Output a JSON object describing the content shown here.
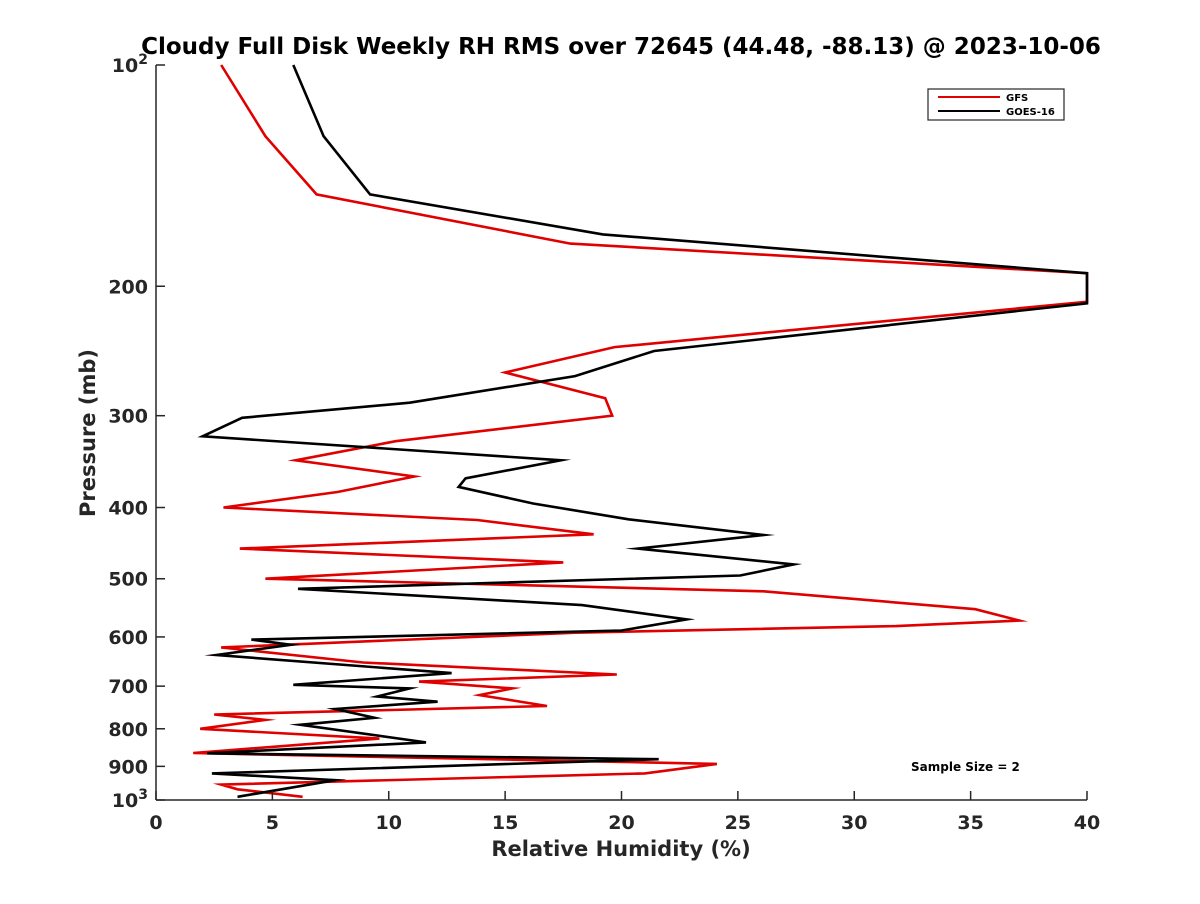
{
  "chart_data": {
    "type": "line",
    "title": "Cloudy Full Disk Weekly RH RMS over 72645 (44.48, -88.13) @ 2023-10-06",
    "xlabel": "Relative Humidity (%)",
    "ylabel": "Pressure (mb)",
    "xlim": [
      0,
      40
    ],
    "ylim": [
      100,
      1000
    ],
    "yscale": "log",
    "y_reversed": true,
    "grid": false,
    "legend_position": "top-right",
    "x_ticks": [
      "0",
      "5",
      "10",
      "15",
      "20",
      "25",
      "30",
      "35",
      "40"
    ],
    "y_ticks": [
      {
        "value": 100,
        "label": "10",
        "exp": "2"
      },
      {
        "value": 200,
        "label": "200"
      },
      {
        "value": 300,
        "label": "300"
      },
      {
        "value": 400,
        "label": "400"
      },
      {
        "value": 500,
        "label": "500"
      },
      {
        "value": 600,
        "label": "600"
      },
      {
        "value": 700,
        "label": "700"
      },
      {
        "value": 800,
        "label": "800"
      },
      {
        "value": 900,
        "label": "900"
      },
      {
        "value": 1000,
        "label": "10",
        "exp": "3"
      }
    ],
    "annotation": "Sample Size = 2",
    "series": [
      {
        "name": "GFS",
        "color": "#e00000",
        "points": [
          [
            2.8,
            100
          ],
          [
            4.7,
            125
          ],
          [
            6.9,
            150
          ],
          [
            17.8,
            175
          ],
          [
            40.0,
            192
          ],
          [
            40.0,
            210
          ],
          [
            19.7,
            242
          ],
          [
            15.0,
            262
          ],
          [
            19.3,
            284
          ],
          [
            19.6,
            300
          ],
          [
            10.3,
            325
          ],
          [
            6.0,
            345
          ],
          [
            11.1,
            363
          ],
          [
            7.8,
            381
          ],
          [
            2.9,
            400
          ],
          [
            13.8,
            416
          ],
          [
            18.8,
            435
          ],
          [
            3.6,
            455
          ],
          [
            17.5,
            475
          ],
          [
            4.7,
            500
          ],
          [
            26.1,
            520
          ],
          [
            35.2,
            550
          ],
          [
            37.1,
            570
          ],
          [
            31.8,
            580
          ],
          [
            18.0,
            592
          ],
          [
            2.8,
            620
          ],
          [
            8.9,
            650
          ],
          [
            19.8,
            675
          ],
          [
            11.3,
            690
          ],
          [
            15.3,
            705
          ],
          [
            13.9,
            720
          ],
          [
            16.8,
            745
          ],
          [
            2.5,
            765
          ],
          [
            4.7,
            778
          ],
          [
            1.9,
            800
          ],
          [
            9.6,
            825
          ],
          [
            1.6,
            863
          ],
          [
            24.1,
            893
          ],
          [
            21.0,
            920
          ],
          [
            2.8,
            953
          ],
          [
            3.5,
            967
          ],
          [
            6.3,
            990
          ]
        ]
      },
      {
        "name": "GOES-16",
        "color": "#000000",
        "points": [
          [
            5.9,
            100
          ],
          [
            7.2,
            125
          ],
          [
            9.2,
            150
          ],
          [
            19.2,
            170
          ],
          [
            40.0,
            192
          ],
          [
            40.0,
            211
          ],
          [
            21.4,
            245
          ],
          [
            18.0,
            265
          ],
          [
            10.9,
            288
          ],
          [
            3.7,
            302
          ],
          [
            2.0,
            320
          ],
          [
            17.4,
            345
          ],
          [
            13.3,
            365
          ],
          [
            13.0,
            375
          ],
          [
            16.2,
            395
          ],
          [
            20.3,
            415
          ],
          [
            26.1,
            436
          ],
          [
            20.7,
            455
          ],
          [
            27.4,
            478
          ],
          [
            25.1,
            495
          ],
          [
            6.1,
            516
          ],
          [
            18.3,
            543
          ],
          [
            22.8,
            568
          ],
          [
            20.0,
            588
          ],
          [
            4.1,
            605
          ],
          [
            5.8,
            615
          ],
          [
            2.6,
            635
          ],
          [
            12.7,
            672
          ],
          [
            5.9,
            697
          ],
          [
            10.9,
            705
          ],
          [
            9.5,
            723
          ],
          [
            12.1,
            735
          ],
          [
            7.7,
            752
          ],
          [
            9.4,
            773
          ],
          [
            6.2,
            790
          ],
          [
            11.6,
            835
          ],
          [
            2.2,
            864
          ],
          [
            21.6,
            880
          ],
          [
            2.4,
            920
          ],
          [
            7.7,
            940
          ],
          [
            3.5,
            990
          ]
        ]
      }
    ]
  }
}
